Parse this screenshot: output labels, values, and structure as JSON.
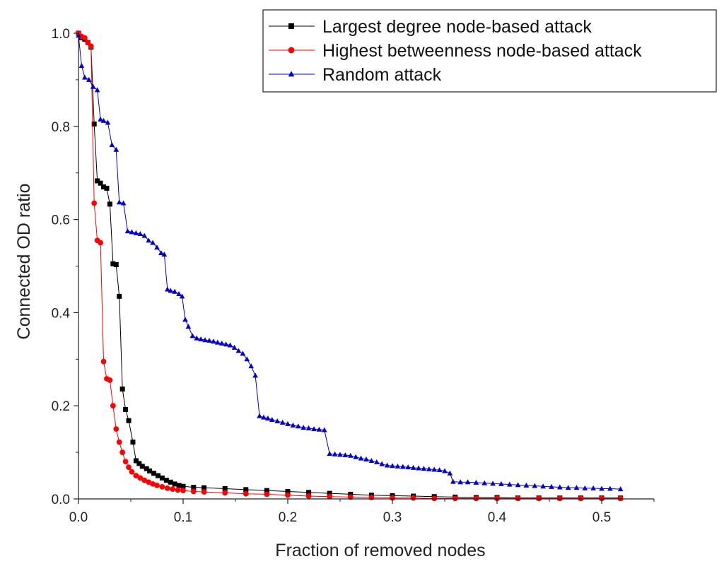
{
  "chart_data": {
    "type": "line",
    "title": "",
    "xlabel": "Fraction of removed nodes",
    "ylabel": "Connected OD ratio",
    "xlim": [
      0,
      0.55
    ],
    "ylim": [
      0,
      1.0
    ],
    "x_ticks": [
      "0.0",
      "0.1",
      "0.2",
      "0.3",
      "0.4",
      "0.5"
    ],
    "y_ticks": [
      "0.0",
      "0.2",
      "0.4",
      "0.6",
      "0.8",
      "1.0"
    ],
    "grid": false,
    "legend_position": "top-right",
    "series": [
      {
        "name": "Largest degree node-based attack",
        "color": "#000000",
        "marker": "square",
        "points": [
          [
            0.0,
            1.0
          ],
          [
            0.003,
            0.99
          ],
          [
            0.006,
            0.987
          ],
          [
            0.009,
            0.98
          ],
          [
            0.012,
            0.97
          ],
          [
            0.015,
            0.805
          ],
          [
            0.018,
            0.683
          ],
          [
            0.021,
            0.678
          ],
          [
            0.024,
            0.67
          ],
          [
            0.027,
            0.667
          ],
          [
            0.03,
            0.633
          ],
          [
            0.033,
            0.505
          ],
          [
            0.036,
            0.503
          ],
          [
            0.039,
            0.435
          ],
          [
            0.042,
            0.236
          ],
          [
            0.045,
            0.192
          ],
          [
            0.048,
            0.168
          ],
          [
            0.052,
            0.122
          ],
          [
            0.055,
            0.082
          ],
          [
            0.058,
            0.076
          ],
          [
            0.061,
            0.07
          ],
          [
            0.065,
            0.065
          ],
          [
            0.068,
            0.06
          ],
          [
            0.072,
            0.055
          ],
          [
            0.076,
            0.05
          ],
          [
            0.08,
            0.045
          ],
          [
            0.084,
            0.04
          ],
          [
            0.088,
            0.036
          ],
          [
            0.092,
            0.032
          ],
          [
            0.096,
            0.029
          ],
          [
            0.1,
            0.027
          ],
          [
            0.11,
            0.025
          ],
          [
            0.12,
            0.024
          ],
          [
            0.14,
            0.022
          ],
          [
            0.16,
            0.02
          ],
          [
            0.18,
            0.018
          ],
          [
            0.2,
            0.016
          ],
          [
            0.22,
            0.014
          ],
          [
            0.24,
            0.012
          ],
          [
            0.26,
            0.01
          ],
          [
            0.28,
            0.008
          ],
          [
            0.3,
            0.007
          ],
          [
            0.32,
            0.006
          ],
          [
            0.34,
            0.005
          ],
          [
            0.36,
            0.004
          ],
          [
            0.38,
            0.003
          ],
          [
            0.4,
            0.003
          ],
          [
            0.42,
            0.002
          ],
          [
            0.44,
            0.002
          ],
          [
            0.46,
            0.002
          ],
          [
            0.48,
            0.002
          ],
          [
            0.5,
            0.002
          ],
          [
            0.518,
            0.002
          ]
        ]
      },
      {
        "name": "Highest betweenness node-based attack",
        "color": "#ff0000",
        "marker": "circle",
        "points": [
          [
            0.0,
            1.0
          ],
          [
            0.003,
            0.993
          ],
          [
            0.006,
            0.99
          ],
          [
            0.009,
            0.98
          ],
          [
            0.012,
            0.972
          ],
          [
            0.015,
            0.635
          ],
          [
            0.018,
            0.555
          ],
          [
            0.021,
            0.55
          ],
          [
            0.024,
            0.295
          ],
          [
            0.027,
            0.258
          ],
          [
            0.03,
            0.255
          ],
          [
            0.033,
            0.2
          ],
          [
            0.036,
            0.15
          ],
          [
            0.039,
            0.122
          ],
          [
            0.042,
            0.1
          ],
          [
            0.045,
            0.08
          ],
          [
            0.048,
            0.068
          ],
          [
            0.051,
            0.058
          ],
          [
            0.055,
            0.05
          ],
          [
            0.059,
            0.045
          ],
          [
            0.063,
            0.04
          ],
          [
            0.067,
            0.036
          ],
          [
            0.071,
            0.032
          ],
          [
            0.075,
            0.029
          ],
          [
            0.08,
            0.026
          ],
          [
            0.085,
            0.023
          ],
          [
            0.09,
            0.021
          ],
          [
            0.095,
            0.019
          ],
          [
            0.1,
            0.018
          ],
          [
            0.11,
            0.016
          ],
          [
            0.12,
            0.015
          ],
          [
            0.14,
            0.013
          ],
          [
            0.16,
            0.011
          ],
          [
            0.18,
            0.01
          ],
          [
            0.2,
            0.008
          ],
          [
            0.22,
            0.006
          ],
          [
            0.24,
            0.005
          ],
          [
            0.26,
            0.004
          ],
          [
            0.28,
            0.003
          ],
          [
            0.3,
            0.002
          ],
          [
            0.32,
            0.002
          ],
          [
            0.34,
            0.001
          ],
          [
            0.36,
            0.001
          ],
          [
            0.38,
            0.001
          ],
          [
            0.4,
            0.001
          ],
          [
            0.42,
            0.001
          ],
          [
            0.44,
            0.001
          ],
          [
            0.46,
            0.001
          ],
          [
            0.48,
            0.001
          ],
          [
            0.5,
            0.001
          ],
          [
            0.518,
            0.001
          ]
        ]
      },
      {
        "name": "Random attack",
        "color": "#0000cc",
        "marker": "triangle",
        "points": [
          [
            0.0,
            0.995
          ],
          [
            0.003,
            0.93
          ],
          [
            0.006,
            0.905
          ],
          [
            0.01,
            0.9
          ],
          [
            0.014,
            0.885
          ],
          [
            0.018,
            0.878
          ],
          [
            0.021,
            0.815
          ],
          [
            0.024,
            0.812
          ],
          [
            0.028,
            0.808
          ],
          [
            0.032,
            0.76
          ],
          [
            0.036,
            0.75
          ],
          [
            0.039,
            0.637
          ],
          [
            0.043,
            0.635
          ],
          [
            0.047,
            0.575
          ],
          [
            0.051,
            0.573
          ],
          [
            0.055,
            0.571
          ],
          [
            0.059,
            0.569
          ],
          [
            0.063,
            0.565
          ],
          [
            0.067,
            0.555
          ],
          [
            0.071,
            0.55
          ],
          [
            0.075,
            0.54
          ],
          [
            0.079,
            0.528
          ],
          [
            0.082,
            0.525
          ],
          [
            0.085,
            0.45
          ],
          [
            0.088,
            0.447
          ],
          [
            0.092,
            0.445
          ],
          [
            0.096,
            0.44
          ],
          [
            0.099,
            0.435
          ],
          [
            0.102,
            0.385
          ],
          [
            0.105,
            0.37
          ],
          [
            0.109,
            0.35
          ],
          [
            0.113,
            0.345
          ],
          [
            0.117,
            0.343
          ],
          [
            0.121,
            0.341
          ],
          [
            0.125,
            0.34
          ],
          [
            0.129,
            0.338
          ],
          [
            0.133,
            0.336
          ],
          [
            0.137,
            0.334
          ],
          [
            0.141,
            0.332
          ],
          [
            0.145,
            0.33
          ],
          [
            0.149,
            0.325
          ],
          [
            0.153,
            0.318
          ],
          [
            0.157,
            0.312
          ],
          [
            0.161,
            0.3
          ],
          [
            0.165,
            0.285
          ],
          [
            0.169,
            0.265
          ],
          [
            0.173,
            0.178
          ],
          [
            0.177,
            0.175
          ],
          [
            0.181,
            0.173
          ],
          [
            0.185,
            0.17
          ],
          [
            0.19,
            0.167
          ],
          [
            0.195,
            0.164
          ],
          [
            0.2,
            0.161
          ],
          [
            0.205,
            0.158
          ],
          [
            0.21,
            0.156
          ],
          [
            0.215,
            0.153
          ],
          [
            0.22,
            0.152
          ],
          [
            0.225,
            0.15
          ],
          [
            0.23,
            0.149
          ],
          [
            0.235,
            0.148
          ],
          [
            0.24,
            0.097
          ],
          [
            0.245,
            0.096
          ],
          [
            0.25,
            0.095
          ],
          [
            0.255,
            0.094
          ],
          [
            0.26,
            0.093
          ],
          [
            0.265,
            0.09
          ],
          [
            0.27,
            0.087
          ],
          [
            0.275,
            0.085
          ],
          [
            0.28,
            0.082
          ],
          [
            0.285,
            0.079
          ],
          [
            0.29,
            0.075
          ],
          [
            0.295,
            0.072
          ],
          [
            0.3,
            0.071
          ],
          [
            0.305,
            0.07
          ],
          [
            0.31,
            0.069
          ],
          [
            0.315,
            0.068
          ],
          [
            0.32,
            0.067
          ],
          [
            0.325,
            0.066
          ],
          [
            0.33,
            0.065
          ],
          [
            0.335,
            0.064
          ],
          [
            0.34,
            0.063
          ],
          [
            0.345,
            0.062
          ],
          [
            0.35,
            0.06
          ],
          [
            0.355,
            0.055
          ],
          [
            0.358,
            0.037
          ],
          [
            0.365,
            0.036
          ],
          [
            0.372,
            0.036
          ],
          [
            0.38,
            0.035
          ],
          [
            0.388,
            0.034
          ],
          [
            0.396,
            0.033
          ],
          [
            0.404,
            0.032
          ],
          [
            0.412,
            0.031
          ],
          [
            0.42,
            0.03
          ],
          [
            0.428,
            0.029
          ],
          [
            0.436,
            0.028
          ],
          [
            0.444,
            0.027
          ],
          [
            0.452,
            0.026
          ],
          [
            0.46,
            0.025
          ],
          [
            0.468,
            0.024
          ],
          [
            0.476,
            0.024
          ],
          [
            0.484,
            0.023
          ],
          [
            0.492,
            0.023
          ],
          [
            0.5,
            0.022
          ],
          [
            0.508,
            0.022
          ],
          [
            0.518,
            0.021
          ]
        ]
      }
    ]
  }
}
